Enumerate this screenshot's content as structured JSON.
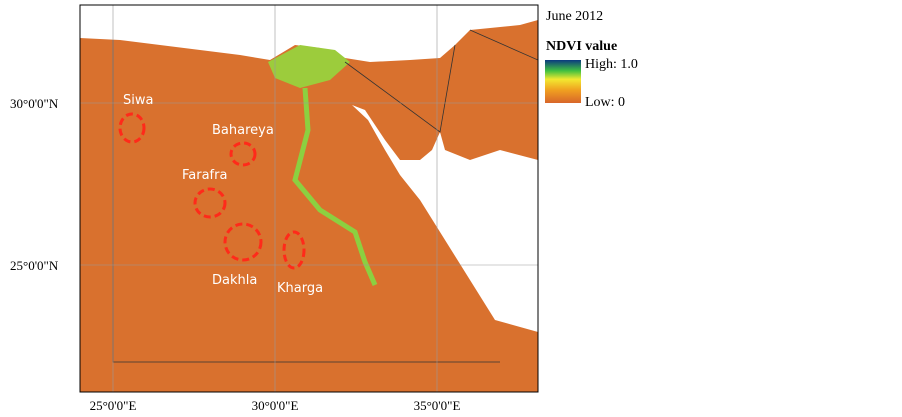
{
  "header": {
    "title": "June 2012"
  },
  "legend": {
    "title": "NDVI value",
    "high": "High: 1.0",
    "low": "Low: 0"
  },
  "places": [
    "Siwa",
    "Bahareya",
    "Farafra",
    "Dakhla",
    "Kharga"
  ],
  "axes": {
    "lat": [
      "30°0'0\"N",
      "25°0'0\"N"
    ],
    "lon": [
      "25°0'0\"E",
      "30°0'0\"E",
      "35°0'0\"E"
    ]
  }
}
